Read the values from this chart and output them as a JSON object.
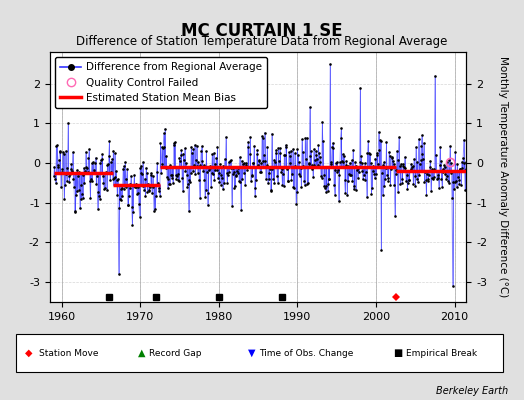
{
  "title": "MC CURTAIN 1 SE",
  "subtitle": "Difference of Station Temperature Data from Regional Average",
  "ylabel": "Monthly Temperature Anomaly Difference (°C)",
  "xlabel_ticks": [
    1960,
    1970,
    1980,
    1990,
    2000,
    2010
  ],
  "xlim": [
    1958.5,
    2011.5
  ],
  "ylim": [
    -3.5,
    2.8
  ],
  "yticks": [
    -3,
    -2,
    -1,
    0,
    1,
    2
  ],
  "bias_segments": [
    {
      "x_start": 1959,
      "x_end": 1966.5,
      "y": -0.25
    },
    {
      "x_start": 1966.5,
      "x_end": 1972.5,
      "y": -0.55
    },
    {
      "x_start": 1972.5,
      "x_end": 1980.5,
      "y": -0.1
    },
    {
      "x_start": 1980.5,
      "x_end": 1989.0,
      "y": -0.1
    },
    {
      "x_start": 1989.0,
      "x_end": 2002.5,
      "y": -0.1
    },
    {
      "x_start": 2002.5,
      "x_end": 2012,
      "y": -0.2
    }
  ],
  "station_move_years": [
    2002.5
  ],
  "record_gap_years": [],
  "empirical_break_years": [
    1966,
    1972,
    1980,
    1988
  ],
  "quality_control_years": [
    2009.5
  ],
  "seed": 12345,
  "line_color": "#3333FF",
  "dot_color": "#000000",
  "bias_color": "#FF0000",
  "background_color": "#E0E0E0",
  "plot_bg_color": "#FFFFFF",
  "grid_color": "#CCCCCC",
  "watermark": "Berkeley Earth",
  "title_fontsize": 12,
  "subtitle_fontsize": 8.5,
  "ylabel_fontsize": 7.5,
  "tick_fontsize": 8,
  "legend_fontsize": 7.5
}
